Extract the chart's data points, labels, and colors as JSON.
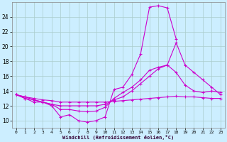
{
  "xlabel": "Windchill (Refroidissement éolien,°C)",
  "background_color": "#cceeff",
  "grid_color": "#aacccc",
  "line_color": "#cc00cc",
  "xlim": [
    -0.5,
    23.5
  ],
  "ylim": [
    9.0,
    26.0
  ],
  "yticks": [
    10,
    12,
    14,
    16,
    18,
    20,
    22,
    24
  ],
  "xticks": [
    0,
    1,
    2,
    3,
    4,
    5,
    6,
    7,
    8,
    9,
    10,
    11,
    12,
    13,
    14,
    15,
    16,
    17,
    18,
    19,
    20,
    21,
    22,
    23
  ],
  "series1_x": [
    0,
    1,
    2,
    3,
    4,
    5,
    6,
    7,
    8,
    9,
    10,
    11,
    12,
    13,
    14,
    15,
    16,
    17,
    18
  ],
  "series1_y": [
    13.5,
    13.0,
    12.5,
    12.5,
    12.0,
    10.5,
    10.8,
    10.0,
    9.8,
    10.0,
    10.5,
    14.2,
    14.5,
    16.2,
    19.0,
    25.3,
    25.5,
    25.2,
    21.0
  ],
  "series2_x": [
    0,
    1,
    2,
    3,
    4,
    5,
    6,
    7,
    8,
    9,
    10,
    11,
    12,
    13,
    14,
    15,
    16,
    17,
    18,
    19,
    20,
    21,
    22,
    23
  ],
  "series2_y": [
    13.5,
    13.0,
    12.8,
    12.5,
    12.2,
    12.0,
    12.0,
    12.0,
    12.0,
    12.0,
    12.2,
    12.8,
    13.2,
    14.0,
    15.0,
    16.0,
    17.0,
    17.5,
    20.5,
    17.5,
    16.5,
    15.5,
    14.5,
    13.5
  ],
  "series3_x": [
    0,
    1,
    2,
    3,
    4,
    5,
    6,
    7,
    8,
    9,
    10,
    11,
    12,
    13,
    14,
    15,
    16,
    17,
    18,
    19,
    20,
    21,
    22,
    23
  ],
  "series3_y": [
    13.5,
    13.2,
    13.0,
    12.8,
    12.7,
    12.5,
    12.5,
    12.5,
    12.5,
    12.5,
    12.5,
    12.6,
    12.7,
    12.8,
    12.9,
    13.0,
    13.1,
    13.2,
    13.3,
    13.2,
    13.2,
    13.1,
    13.0,
    13.0
  ],
  "series4_x": [
    0,
    1,
    2,
    3,
    4,
    5,
    6,
    7,
    8,
    9,
    10,
    11,
    12,
    13,
    14,
    15,
    16,
    17,
    18,
    19,
    20,
    21,
    22,
    23
  ],
  "series4_y": [
    13.5,
    13.2,
    12.8,
    12.5,
    12.2,
    11.5,
    11.5,
    11.3,
    11.2,
    11.3,
    11.8,
    13.0,
    13.8,
    14.5,
    15.5,
    16.8,
    17.2,
    17.5,
    16.5,
    14.8,
    14.0,
    13.8,
    14.0,
    13.8
  ]
}
